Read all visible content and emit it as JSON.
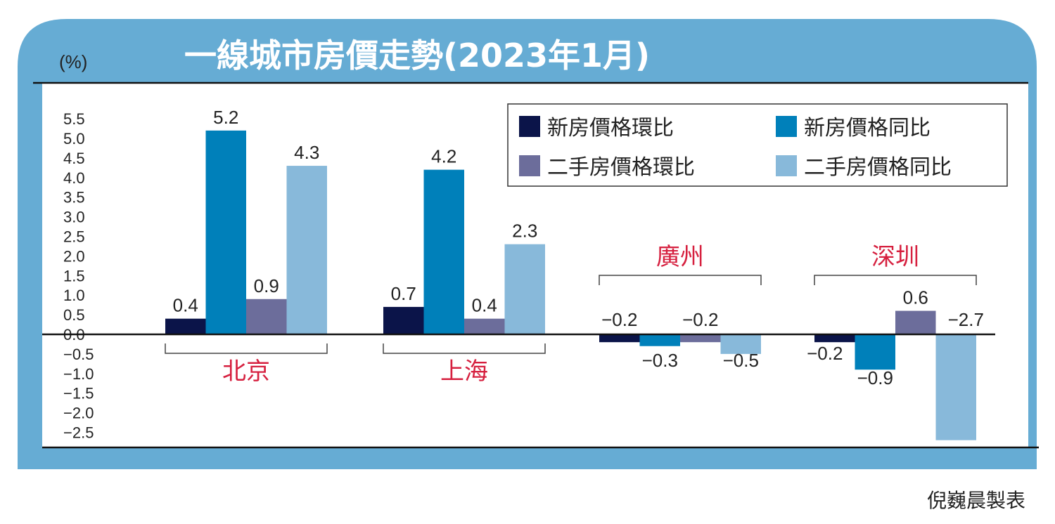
{
  "title": "一線城市房價走勢(2023年1月)",
  "credit": "倪巍晨製表",
  "colors": {
    "frame": "#66acd4",
    "city_label": "#d6203f",
    "series": [
      "#0b1449",
      "#0080ba",
      "#6c6d9b",
      "#88b9da"
    ]
  },
  "chart_data": {
    "type": "bar",
    "title": "一線城市房價走勢(2023年1月)",
    "ylabel": "(%)",
    "ylim": [
      -2.5,
      5.5
    ],
    "yticks": [
      "5.5",
      "5.0",
      "4.5",
      "4.0",
      "3.5",
      "3.0",
      "2.5",
      "2.0",
      "1.5",
      "1.0",
      "0.5",
      "0.0",
      "-0.5",
      "-1.0",
      "-1.5",
      "-2.0",
      "-2.5"
    ],
    "grid": false,
    "legend_position": "top-right",
    "categories": [
      "北京",
      "上海",
      "廣州",
      "深圳"
    ],
    "series": [
      {
        "name": "新房價格環比",
        "values": [
          0.4,
          0.7,
          -0.2,
          -0.2
        ]
      },
      {
        "name": "新房價格同比",
        "values": [
          5.2,
          4.2,
          -0.3,
          -0.9
        ]
      },
      {
        "name": "二手房價格環比",
        "values": [
          0.9,
          0.4,
          -0.2,
          0.6
        ]
      },
      {
        "name": "二手房價格同比",
        "values": [
          4.3,
          2.3,
          -0.5,
          -2.7
        ]
      }
    ],
    "data_labels": [
      [
        "0.4",
        "0.7",
        "−0.2",
        "−0.2"
      ],
      [
        "5.2",
        "4.2",
        "−0.3",
        "−0.9"
      ],
      [
        "0.9",
        "0.4",
        "−0.2",
        "0.6"
      ],
      [
        "4.3",
        "2.3",
        "−0.5",
        "−2.7"
      ]
    ]
  }
}
